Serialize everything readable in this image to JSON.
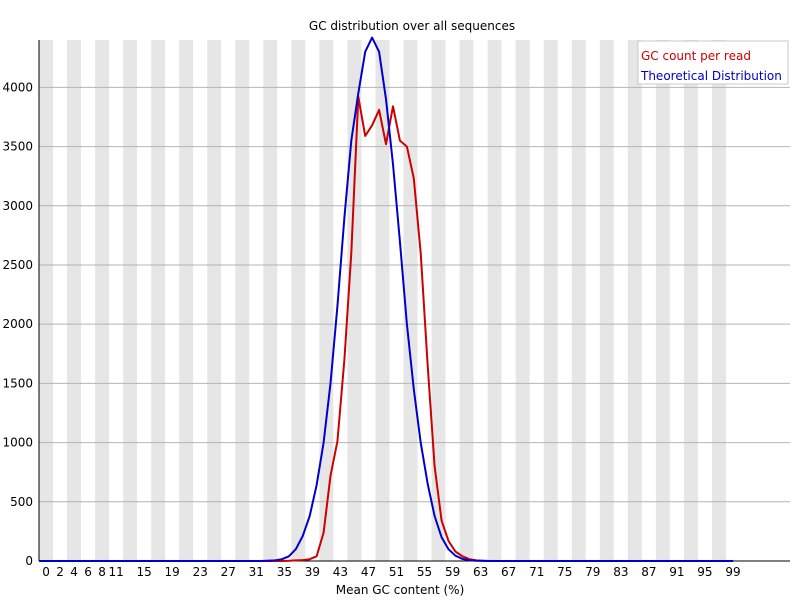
{
  "chart_data": {
    "type": "line",
    "title": "GC distribution over all sequences",
    "xlabel": "Mean GC content (%)",
    "ylabel": "",
    "xlim": [
      0,
      101
    ],
    "ylim": [
      0,
      4400
    ],
    "y_ticks": [
      0,
      500,
      1000,
      1500,
      2000,
      2500,
      3000,
      3500,
      4000
    ],
    "x_tick_labels": [
      "0",
      "2",
      "4",
      "6",
      "8",
      "11",
      "15",
      "19",
      "23",
      "27",
      "31",
      "35",
      "39",
      "43",
      "47",
      "51",
      "55",
      "59",
      "63",
      "67",
      "71",
      "75",
      "79",
      "83",
      "87",
      "91",
      "95",
      "99"
    ],
    "x_tick_positions": [
      0,
      1,
      2,
      3,
      4,
      5,
      7,
      9,
      11,
      13,
      15,
      17,
      19,
      21,
      23,
      25,
      27,
      29,
      31,
      33,
      35,
      37,
      39,
      41,
      43,
      45,
      47,
      49
    ],
    "legend": "top-right",
    "grid": "horizontal lines with alternating vertical bands",
    "series": [
      {
        "name": "GC count per read",
        "color": "#cc0000",
        "x": [
          0,
          2,
          4,
          6,
          8,
          10,
          12,
          14,
          16,
          18,
          20,
          22,
          24,
          26,
          28,
          30,
          32,
          34,
          35,
          36,
          37,
          38,
          39,
          40,
          41,
          42,
          43,
          44,
          45,
          46,
          47,
          48,
          49,
          50,
          51,
          52,
          53,
          54,
          55,
          56,
          57,
          58,
          59,
          60,
          61,
          62,
          63,
          64,
          65,
          66,
          68,
          70,
          72,
          74,
          76,
          78,
          80,
          82,
          84,
          86,
          88,
          90,
          92,
          94,
          96,
          98,
          99,
          100
        ],
        "values": [
          0,
          0,
          0,
          0,
          0,
          0,
          0,
          0,
          0,
          0,
          0,
          0,
          0,
          0,
          0,
          0,
          0,
          0,
          0,
          2,
          5,
          8,
          15,
          40,
          240,
          720,
          1010,
          1700,
          2600,
          3920,
          3590,
          3680,
          3810,
          3520,
          3840,
          3550,
          3500,
          3230,
          2600,
          1650,
          800,
          340,
          170,
          80,
          40,
          15,
          5,
          2,
          0,
          0,
          0,
          0,
          0,
          0,
          0,
          0,
          0,
          0,
          0,
          0,
          0,
          0,
          0,
          0,
          0,
          0,
          0,
          0
        ]
      },
      {
        "name": "Theoretical Distribution",
        "color": "#0000cc",
        "x": [
          0,
          2,
          4,
          6,
          8,
          10,
          12,
          14,
          16,
          18,
          20,
          22,
          24,
          26,
          28,
          30,
          32,
          34,
          35,
          36,
          37,
          38,
          39,
          40,
          41,
          42,
          43,
          44,
          45,
          46,
          47,
          48,
          49,
          50,
          51,
          52,
          53,
          54,
          55,
          56,
          57,
          58,
          59,
          60,
          61,
          62,
          63,
          64,
          65,
          66,
          68,
          70,
          72,
          74,
          76,
          78,
          80,
          82,
          84,
          86,
          88,
          90,
          92,
          94,
          96,
          98,
          99,
          100
        ],
        "values": [
          0,
          0,
          0,
          0,
          0,
          0,
          0,
          0,
          0,
          0,
          0,
          0,
          0,
          0,
          0,
          0,
          0,
          5,
          15,
          40,
          100,
          210,
          380,
          640,
          1000,
          1500,
          2150,
          2900,
          3550,
          3950,
          4300,
          4420,
          4300,
          3900,
          3350,
          2700,
          2000,
          1450,
          1000,
          650,
          380,
          200,
          100,
          45,
          18,
          6,
          2,
          1,
          0,
          0,
          0,
          0,
          0,
          0,
          0,
          0,
          0,
          0,
          0,
          0,
          0,
          0,
          0,
          0,
          0,
          0,
          0,
          0
        ]
      }
    ]
  }
}
